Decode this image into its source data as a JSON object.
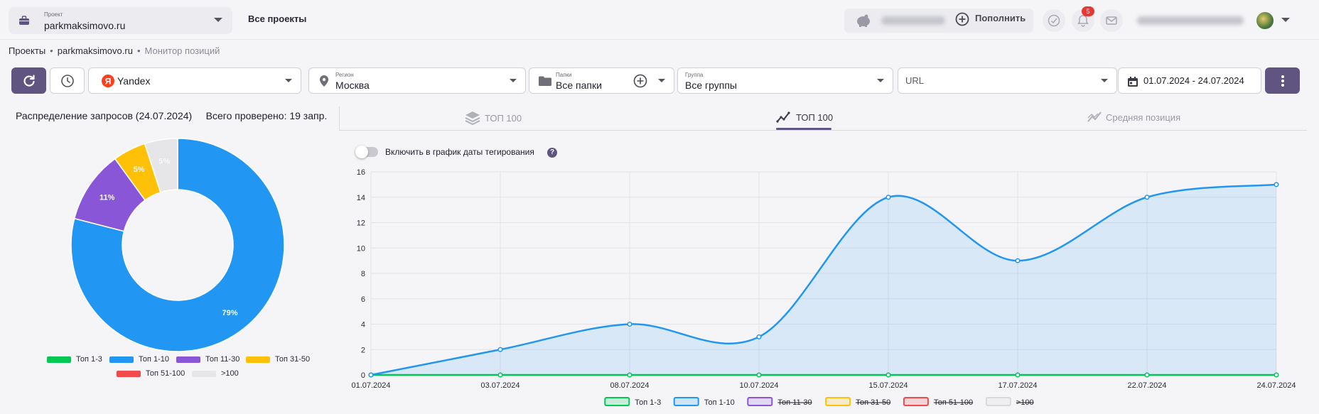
{
  "header": {
    "project_caption": "Проект",
    "project_name": "parkmaksimovo.ru",
    "all_projects": "Все проекты",
    "topup_label": "Пополнить",
    "notifications_count": "5",
    "icons": [
      "briefcase-icon",
      "piggy-bank-icon",
      "plus-circle-icon",
      "check-circle-icon",
      "bell-icon",
      "mail-icon",
      "chevron-down-icon"
    ]
  },
  "breadcrumb": {
    "items": [
      "Проекты",
      "parkmaksimovo.ru"
    ],
    "current": "Монитор позиций",
    "separator": "•"
  },
  "filters": {
    "engine": "Yandex",
    "region_caption": "Регион",
    "region": "Москва",
    "folders_caption": "Папки",
    "folders": "Все папки",
    "group_caption": "Группа",
    "group": "Все группы",
    "url_placeholder": "URL",
    "date_range": "01.07.2024 - 24.07.2024"
  },
  "distribution": {
    "title": "Распределение запросов (24.07.2024)",
    "checked": "Всего проверено: 19 запр.",
    "slices": [
      {
        "label": "Топ 1-3",
        "value": 0,
        "color": "#00c853",
        "text": ""
      },
      {
        "label": "Топ 1-10",
        "value": 79,
        "color": "#2196f3",
        "text": "79%"
      },
      {
        "label": "Топ 11-30",
        "value": 11,
        "color": "#8a56d8",
        "text": "11%"
      },
      {
        "label": "Топ 31-50",
        "value": 5,
        "color": "#ffc107",
        "text": "5%"
      },
      {
        "label": "Топ 51-100",
        "value": 0,
        "color": "#f04a4a",
        "text": ""
      },
      {
        "label": ">100",
        "value": 5,
        "color": "#e6e6e8",
        "text": "5%"
      }
    ]
  },
  "tabs": [
    {
      "label": "ТОП 100",
      "icon": "layers-icon",
      "active": false
    },
    {
      "label": "ТОП 100",
      "icon": "trend-chart-icon",
      "active": true
    },
    {
      "label": "Средняя позиция",
      "icon": "line-chart-icon",
      "active": false
    }
  ],
  "toggle_label": "Включить в график даты тегирования",
  "help_symbol": "?",
  "chart_data": {
    "type": "area",
    "x": [
      "01.07.2024",
      "03.07.2024",
      "08.07.2024",
      "10.07.2024",
      "15.07.2024",
      "17.07.2024",
      "22.07.2024",
      "24.07.2024"
    ],
    "ylim": [
      0,
      16
    ],
    "yticks": [
      0,
      2,
      4,
      6,
      8,
      10,
      12,
      14,
      16
    ],
    "grid": true,
    "legend_position": "bottom",
    "series": [
      {
        "name": "Топ 1-3",
        "color": "#00c853",
        "values": [
          0,
          0,
          0,
          0,
          0,
          0,
          0,
          0
        ],
        "visible": true
      },
      {
        "name": "Топ 1-10",
        "color": "#2196f3",
        "values": [
          0,
          2,
          4,
          3,
          14,
          9,
          14,
          15
        ],
        "visible": true
      },
      {
        "name": "Топ 11-30",
        "color": "#8a56d8",
        "visible": false
      },
      {
        "name": "Топ 31-50",
        "color": "#ffc107",
        "visible": false
      },
      {
        "name": "Топ 51-100",
        "color": "#f04a4a",
        "visible": false
      },
      {
        "name": ">100",
        "color": "#d9d9dc",
        "visible": false
      }
    ]
  }
}
